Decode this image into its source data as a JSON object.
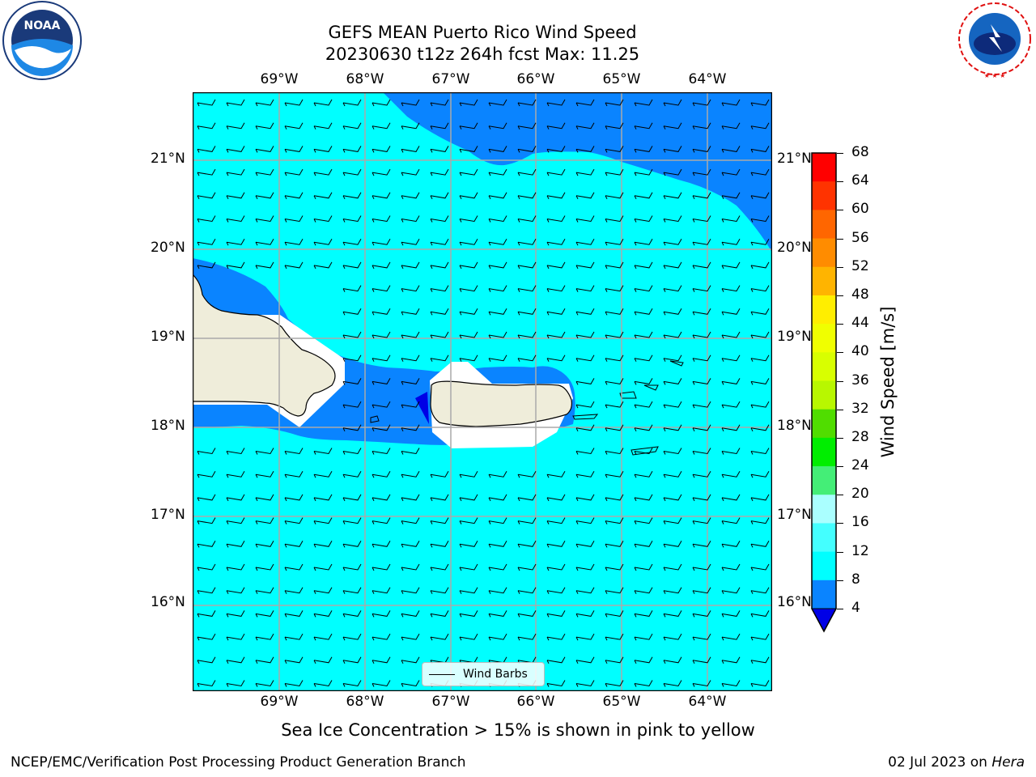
{
  "title": {
    "line1": "GEFS MEAN Puerto Rico Wind Speed",
    "line2": "20230630 t12z 264h fcst   Max: 11.25"
  },
  "map": {
    "lon_ticks": [
      "69°W",
      "68°W",
      "67°W",
      "66°W",
      "65°W",
      "64°W"
    ],
    "lat_ticks": [
      "21°N",
      "20°N",
      "19°N",
      "18°N",
      "17°N",
      "16°N"
    ],
    "lon_range": [
      -70.0,
      -63.25
    ],
    "lat_range": [
      15.0,
      21.75
    ],
    "gridlines": true,
    "legend_label": "Wind Barbs",
    "colors": {
      "ocean_cyan": "#00ffff",
      "band_blue": "#0a84ff",
      "dark_blue": "#0000e6",
      "land": "#efedda",
      "grid": "#aaaaaa"
    }
  },
  "colorbar": {
    "label": "Wind Speed [m/s]",
    "ticks": [
      "68",
      "64",
      "60",
      "56",
      "52",
      "48",
      "44",
      "40",
      "36",
      "32",
      "28",
      "24",
      "20",
      "16",
      "12",
      "8",
      "4"
    ],
    "bins": [
      {
        "from": 64,
        "to": 68,
        "color": "#ff0000"
      },
      {
        "from": 60,
        "to": 64,
        "color": "#ff3300"
      },
      {
        "from": 56,
        "to": 60,
        "color": "#ff6600"
      },
      {
        "from": 52,
        "to": 56,
        "color": "#ff8c00"
      },
      {
        "from": 48,
        "to": 52,
        "color": "#ffb400"
      },
      {
        "from": 44,
        "to": 48,
        "color": "#ffee00"
      },
      {
        "from": 40,
        "to": 44,
        "color": "#f0ff00"
      },
      {
        "from": 36,
        "to": 40,
        "color": "#d8ff00"
      },
      {
        "from": 32,
        "to": 36,
        "color": "#b8f700"
      },
      {
        "from": 28,
        "to": 32,
        "color": "#50dd00"
      },
      {
        "from": 24,
        "to": 28,
        "color": "#00ee00"
      },
      {
        "from": 20,
        "to": 24,
        "color": "#44ee77"
      },
      {
        "from": 16,
        "to": 20,
        "color": "#aaffff"
      },
      {
        "from": 12,
        "to": 16,
        "color": "#44ffff"
      },
      {
        "from": 8,
        "to": 12,
        "color": "#00ffff"
      },
      {
        "from": 4,
        "to": 8,
        "color": "#0a84ff"
      }
    ],
    "under_color": "#0000e6"
  },
  "sea_ice_note": "Sea Ice Concentration > 15% is shown in pink to yellow",
  "footer": {
    "left": "NCEP/EMC/Verification Post Processing Product Generation Branch",
    "right_date": "02 Jul 2023 on ",
    "right_host": "Hera"
  }
}
